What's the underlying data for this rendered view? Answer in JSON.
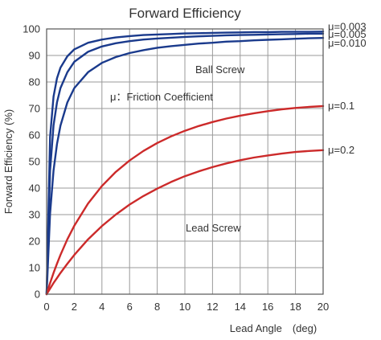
{
  "chart_data": {
    "type": "line",
    "title": "Forward Efficiency",
    "xlabel": "Lead Angle　(deg)",
    "ylabel": "Forward Efficiency  (%)",
    "xlim": [
      0,
      20
    ],
    "ylim": [
      0,
      100
    ],
    "xticks": [
      0,
      2,
      4,
      6,
      8,
      10,
      12,
      14,
      16,
      18,
      20
    ],
    "yticks": [
      0,
      10,
      20,
      30,
      40,
      50,
      60,
      70,
      80,
      90,
      100
    ],
    "grid": true,
    "annotations": [
      "Ball Screw",
      "μ：Friction Coefficient",
      "Lead Screw"
    ],
    "x": [
      0,
      0.25,
      0.5,
      0.75,
      1,
      1.5,
      2,
      3,
      4,
      5,
      6,
      7,
      8,
      9,
      10,
      11,
      12,
      13,
      14,
      15,
      16,
      17,
      18,
      19,
      20
    ],
    "series": [
      {
        "name": "μ=0.003",
        "color": "#1a3a8c",
        "values": [
          0,
          59.3,
          74.5,
          81.4,
          85.4,
          89.7,
          92.3,
          94.8,
          96.0,
          96.8,
          97.3,
          97.7,
          97.9,
          98.1,
          98.3,
          98.4,
          98.5,
          98.6,
          98.7,
          98.8,
          98.8,
          98.9,
          98.9,
          98.9,
          99.0
        ]
      },
      {
        "name": "μ=0.005",
        "color": "#1a3a8c",
        "values": [
          0,
          46.6,
          63.6,
          72.3,
          77.7,
          83.7,
          87.6,
          91.4,
          93.4,
          94.6,
          95.4,
          96.0,
          96.4,
          96.7,
          97.0,
          97.2,
          97.4,
          97.6,
          97.7,
          97.8,
          97.9,
          98.0,
          98.1,
          98.2,
          98.2
        ]
      },
      {
        "name": "μ=0.010",
        "color": "#1a3a8c",
        "values": [
          0,
          30.4,
          46.6,
          56.6,
          63.5,
          72.3,
          77.7,
          83.7,
          87.2,
          89.4,
          90.9,
          92.0,
          92.9,
          93.5,
          94.0,
          94.5,
          94.8,
          95.2,
          95.4,
          95.7,
          95.9,
          96.1,
          96.3,
          96.5,
          96.6
        ]
      },
      {
        "name": "μ=0.1",
        "color": "#cc2a2a",
        "values": [
          0,
          4.2,
          8.0,
          11.5,
          14.8,
          20.7,
          25.8,
          34.2,
          40.8,
          46.1,
          50.4,
          54.0,
          57.0,
          59.5,
          61.6,
          63.4,
          64.9,
          66.2,
          67.3,
          68.2,
          69.0,
          69.7,
          70.2,
          70.6,
          70.9
        ]
      },
      {
        "name": "μ=0.2",
        "color": "#cc2a2a",
        "values": [
          0,
          2.1,
          4.2,
          6.1,
          8.0,
          11.5,
          14.8,
          20.7,
          25.7,
          30.0,
          33.8,
          37.0,
          39.8,
          42.3,
          44.5,
          46.3,
          47.9,
          49.3,
          50.5,
          51.5,
          52.3,
          53.0,
          53.6,
          54.0,
          54.3
        ]
      }
    ]
  }
}
